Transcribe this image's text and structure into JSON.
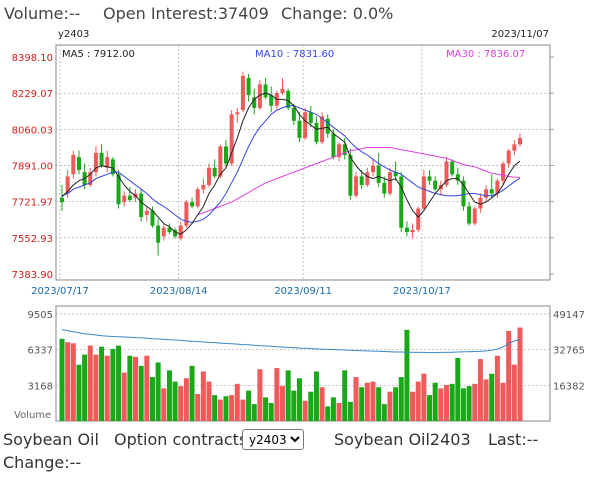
{
  "header": {
    "volume_label": "Volume:--",
    "open_interest_label": "Open Interest:37409",
    "change_label": "Change: 0.0%"
  },
  "chart_meta": {
    "contract": "y2403",
    "date": "2023/11/07",
    "ma5_label": "MA5 : 7912.00",
    "ma10_label": "MA10 : 7831.60",
    "ma30_label": "MA30 : 7836.07",
    "volume_label": "Volume"
  },
  "colors": {
    "up": "#f05a5a",
    "down": "#18a818",
    "ma5": "#222222",
    "ma10": "#3446e0",
    "ma30": "#e040e0",
    "vol_ma": "#3a87c8",
    "grid": "#aaaaaa",
    "axis_text": "#d02020",
    "date_text": "#1a6aa8"
  },
  "chart_data": [
    {
      "type": "candlestick",
      "y_ticks": [
        "8398.10",
        "8229.07",
        "8060.03",
        "7891.00",
        "7721.97",
        "7552.93",
        "7383.90"
      ],
      "ylim": [
        7383.9,
        8398.1
      ],
      "x_ticks": [
        "2023/07/17",
        "2023/08/14",
        "2023/09/11",
        "2023/10/17"
      ],
      "candles": [
        {
          "o": 7740,
          "h": 7800,
          "l": 7680,
          "c": 7720
        },
        {
          "o": 7760,
          "h": 7870,
          "l": 7740,
          "c": 7840
        },
        {
          "o": 7850,
          "h": 7960,
          "l": 7830,
          "c": 7940
        },
        {
          "o": 7930,
          "h": 7960,
          "l": 7850,
          "c": 7870
        },
        {
          "o": 7860,
          "h": 7900,
          "l": 7780,
          "c": 7800
        },
        {
          "o": 7800,
          "h": 7880,
          "l": 7790,
          "c": 7860
        },
        {
          "o": 7860,
          "h": 7980,
          "l": 7840,
          "c": 7950
        },
        {
          "o": 7950,
          "h": 7990,
          "l": 7880,
          "c": 7890
        },
        {
          "o": 7880,
          "h": 7960,
          "l": 7860,
          "c": 7930
        },
        {
          "o": 7920,
          "h": 7930,
          "l": 7840,
          "c": 7850
        },
        {
          "o": 7850,
          "h": 7870,
          "l": 7690,
          "c": 7710
        },
        {
          "o": 7720,
          "h": 7770,
          "l": 7700,
          "c": 7750
        },
        {
          "o": 7750,
          "h": 7790,
          "l": 7720,
          "c": 7730
        },
        {
          "o": 7740,
          "h": 7780,
          "l": 7720,
          "c": 7760
        },
        {
          "o": 7760,
          "h": 7780,
          "l": 7630,
          "c": 7650
        },
        {
          "o": 7660,
          "h": 7700,
          "l": 7630,
          "c": 7680
        },
        {
          "o": 7680,
          "h": 7700,
          "l": 7600,
          "c": 7610
        },
        {
          "o": 7610,
          "h": 7640,
          "l": 7470,
          "c": 7530
        },
        {
          "o": 7560,
          "h": 7620,
          "l": 7540,
          "c": 7600
        },
        {
          "o": 7600,
          "h": 7620,
          "l": 7570,
          "c": 7580
        },
        {
          "o": 7590,
          "h": 7600,
          "l": 7550,
          "c": 7560
        },
        {
          "o": 7550,
          "h": 7630,
          "l": 7540,
          "c": 7610
        },
        {
          "o": 7610,
          "h": 7730,
          "l": 7600,
          "c": 7720
        },
        {
          "o": 7720,
          "h": 7740,
          "l": 7690,
          "c": 7700
        },
        {
          "o": 7700,
          "h": 7790,
          "l": 7690,
          "c": 7780
        },
        {
          "o": 7780,
          "h": 7830,
          "l": 7760,
          "c": 7800
        },
        {
          "o": 7800,
          "h": 7900,
          "l": 7790,
          "c": 7880
        },
        {
          "o": 7880,
          "h": 7920,
          "l": 7830,
          "c": 7840
        },
        {
          "o": 7840,
          "h": 7990,
          "l": 7830,
          "c": 7980
        },
        {
          "o": 7980,
          "h": 8010,
          "l": 7880,
          "c": 7900
        },
        {
          "o": 7900,
          "h": 8150,
          "l": 7890,
          "c": 8130
        },
        {
          "o": 8130,
          "h": 8160,
          "l": 8090,
          "c": 8140
        },
        {
          "o": 8150,
          "h": 8330,
          "l": 8140,
          "c": 8310
        },
        {
          "o": 8300,
          "h": 8320,
          "l": 8190,
          "c": 8220
        },
        {
          "o": 8210,
          "h": 8250,
          "l": 8130,
          "c": 8160
        },
        {
          "o": 8160,
          "h": 8290,
          "l": 8150,
          "c": 8270
        },
        {
          "o": 8270,
          "h": 8300,
          "l": 8200,
          "c": 8210
        },
        {
          "o": 8220,
          "h": 8260,
          "l": 8140,
          "c": 8170
        },
        {
          "o": 8170,
          "h": 8240,
          "l": 8150,
          "c": 8230
        },
        {
          "o": 8230,
          "h": 8300,
          "l": 8220,
          "c": 8250
        },
        {
          "o": 8240,
          "h": 8250,
          "l": 8150,
          "c": 8160
        },
        {
          "o": 8160,
          "h": 8180,
          "l": 8080,
          "c": 8100
        },
        {
          "o": 8100,
          "h": 8140,
          "l": 8000,
          "c": 8020
        },
        {
          "o": 8020,
          "h": 8160,
          "l": 8010,
          "c": 8140
        },
        {
          "o": 8140,
          "h": 8170,
          "l": 8070,
          "c": 8090
        },
        {
          "o": 8090,
          "h": 8120,
          "l": 7990,
          "c": 8000
        },
        {
          "o": 8000,
          "h": 8140,
          "l": 7990,
          "c": 8120
        },
        {
          "o": 8110,
          "h": 8130,
          "l": 8020,
          "c": 8040
        },
        {
          "o": 8040,
          "h": 8060,
          "l": 7920,
          "c": 7930
        },
        {
          "o": 7930,
          "h": 8000,
          "l": 7910,
          "c": 7990
        },
        {
          "o": 7990,
          "h": 8020,
          "l": 7920,
          "c": 7940
        },
        {
          "o": 7940,
          "h": 7970,
          "l": 7730,
          "c": 7750
        },
        {
          "o": 7750,
          "h": 7860,
          "l": 7740,
          "c": 7840
        },
        {
          "o": 7840,
          "h": 7870,
          "l": 7780,
          "c": 7800
        },
        {
          "o": 7800,
          "h": 7880,
          "l": 7790,
          "c": 7860
        },
        {
          "o": 7860,
          "h": 7920,
          "l": 7840,
          "c": 7890
        },
        {
          "o": 7890,
          "h": 7950,
          "l": 7790,
          "c": 7810
        },
        {
          "o": 7810,
          "h": 7840,
          "l": 7740,
          "c": 7760
        },
        {
          "o": 7760,
          "h": 7880,
          "l": 7750,
          "c": 7860
        },
        {
          "o": 7860,
          "h": 7910,
          "l": 7820,
          "c": 7840
        },
        {
          "o": 7840,
          "h": 7860,
          "l": 7580,
          "c": 7600
        },
        {
          "o": 7600,
          "h": 7630,
          "l": 7560,
          "c": 7580
        },
        {
          "o": 7580,
          "h": 7620,
          "l": 7550,
          "c": 7590
        },
        {
          "o": 7590,
          "h": 7700,
          "l": 7580,
          "c": 7690
        },
        {
          "o": 7690,
          "h": 7870,
          "l": 7680,
          "c": 7840
        },
        {
          "o": 7840,
          "h": 7870,
          "l": 7800,
          "c": 7820
        },
        {
          "o": 7820,
          "h": 7840,
          "l": 7770,
          "c": 7780
        },
        {
          "o": 7780,
          "h": 7820,
          "l": 7750,
          "c": 7800
        },
        {
          "o": 7800,
          "h": 7930,
          "l": 7790,
          "c": 7910
        },
        {
          "o": 7910,
          "h": 7920,
          "l": 7840,
          "c": 7850
        },
        {
          "o": 7850,
          "h": 7880,
          "l": 7800,
          "c": 7820
        },
        {
          "o": 7820,
          "h": 7840,
          "l": 7680,
          "c": 7700
        },
        {
          "o": 7700,
          "h": 7720,
          "l": 7610,
          "c": 7620
        },
        {
          "o": 7620,
          "h": 7700,
          "l": 7610,
          "c": 7690
        },
        {
          "o": 7690,
          "h": 7760,
          "l": 7670,
          "c": 7740
        },
        {
          "o": 7740,
          "h": 7800,
          "l": 7720,
          "c": 7780
        },
        {
          "o": 7780,
          "h": 7850,
          "l": 7740,
          "c": 7760
        },
        {
          "o": 7760,
          "h": 7830,
          "l": 7740,
          "c": 7820
        },
        {
          "o": 7820,
          "h": 7910,
          "l": 7800,
          "c": 7900
        },
        {
          "o": 7900,
          "h": 7970,
          "l": 7880,
          "c": 7960
        },
        {
          "o": 7960,
          "h": 8010,
          "l": 7940,
          "c": 7990
        },
        {
          "o": 7990,
          "h": 8040,
          "l": 7980,
          "c": 8020
        }
      ],
      "ma5": [
        7745,
        7770,
        7800,
        7820,
        7830,
        7850,
        7880,
        7890,
        7885,
        7880,
        7840,
        7800,
        7770,
        7750,
        7720,
        7700,
        7680,
        7650,
        7620,
        7605,
        7580,
        7570,
        7590,
        7620,
        7660,
        7700,
        7760,
        7800,
        7850,
        7880,
        7950,
        8020,
        8100,
        8160,
        8200,
        8220,
        8230,
        8220,
        8200,
        8200,
        8195,
        8170,
        8130,
        8100,
        8080,
        8060,
        8065,
        8070,
        8040,
        8020,
        8000,
        7930,
        7890,
        7860,
        7840,
        7830,
        7840,
        7830,
        7820,
        7830,
        7790,
        7730,
        7680,
        7650,
        7680,
        7720,
        7760,
        7790,
        7820,
        7830,
        7830,
        7800,
        7760,
        7720,
        7710,
        7720,
        7740,
        7760,
        7800,
        7850,
        7890,
        7912
      ],
      "ma10": [
        7750,
        7760,
        7780,
        7790,
        7800,
        7810,
        7830,
        7840,
        7850,
        7860,
        7860,
        7840,
        7820,
        7800,
        7780,
        7760,
        7735,
        7715,
        7700,
        7680,
        7660,
        7640,
        7630,
        7625,
        7630,
        7640,
        7660,
        7690,
        7720,
        7760,
        7810,
        7860,
        7920,
        7980,
        8030,
        8070,
        8100,
        8130,
        8150,
        8160,
        8170,
        8170,
        8160,
        8150,
        8140,
        8130,
        8110,
        8090,
        8070,
        8050,
        8030,
        8000,
        7975,
        7955,
        7940,
        7920,
        7900,
        7885,
        7870,
        7860,
        7850,
        7830,
        7810,
        7790,
        7780,
        7770,
        7760,
        7755,
        7750,
        7750,
        7750,
        7755,
        7760,
        7760,
        7755,
        7750,
        7750,
        7760,
        7775,
        7795,
        7815,
        7832
      ],
      "ma30_start": 24,
      "ma30": [
        7660,
        7670,
        7680,
        7690,
        7700,
        7710,
        7720,
        7735,
        7750,
        7765,
        7780,
        7795,
        7810,
        7820,
        7830,
        7840,
        7850,
        7860,
        7870,
        7880,
        7890,
        7900,
        7910,
        7920,
        7930,
        7940,
        7950,
        7960,
        7965,
        7970,
        7975,
        7975,
        7975,
        7975,
        7975,
        7970,
        7965,
        7960,
        7955,
        7950,
        7945,
        7940,
        7935,
        7930,
        7925,
        7915,
        7905,
        7895,
        7890,
        7885,
        7875,
        7865,
        7855,
        7850,
        7845,
        7840,
        7836,
        7836
      ]
    },
    {
      "type": "bar",
      "title": "Volume",
      "y_ticks_left": [
        "9505",
        "6337",
        "3168"
      ],
      "y_ticks_right": [
        "49147",
        "32765",
        "16382"
      ],
      "ylim": [
        0,
        9505
      ],
      "right_ylim": [
        0,
        49147
      ],
      "volumes": [
        7300,
        7000,
        6900,
        5000,
        5900,
        6700,
        5900,
        6600,
        5800,
        6400,
        6700,
        4300,
        5800,
        5700,
        4900,
        5800,
        3900,
        5200,
        2900,
        4500,
        3500,
        3100,
        3800,
        4900,
        2400,
        4400,
        3500,
        2300,
        1900,
        2200,
        2300,
        3300,
        1900,
        2700,
        1500,
        4600,
        2100,
        1600,
        4700,
        3100,
        4500,
        2700,
        3800,
        1800,
        2600,
        4400,
        3000,
        1300,
        2100,
        1600,
        4500,
        1700,
        3900,
        3000,
        3400,
        3500,
        3000,
        1500,
        2600,
        3000,
        3900,
        8100,
        2600,
        3500,
        4200,
        2300,
        3400,
        2900,
        3200,
        3300,
        5600,
        2900,
        3100,
        3300,
        5500,
        3700,
        4200,
        5800,
        3400,
        8000,
        5000,
        8300
      ],
      "open_interest": [
        42000,
        41500,
        41000,
        40500,
        40000,
        39800,
        39500,
        39200,
        39000,
        38800,
        38700,
        38600,
        38500,
        38300,
        38200,
        38000,
        37800,
        37700,
        37500,
        37300,
        37200,
        37000,
        36800,
        36600,
        36500,
        36300,
        36100,
        36000,
        35800,
        35600,
        35500,
        35300,
        35100,
        35000,
        34800,
        34600,
        34500,
        34300,
        34100,
        34000,
        33800,
        33700,
        33500,
        33400,
        33300,
        33100,
        33000,
        32900,
        32800,
        32700,
        32600,
        32500,
        32400,
        32300,
        32200,
        32100,
        32000,
        31900,
        31800,
        31700,
        31700,
        31600,
        31600,
        31500,
        31500,
        31400,
        31400,
        31500,
        31500,
        31600,
        31700,
        31800,
        31800,
        31900,
        32000,
        32200,
        32500,
        33000,
        34000,
        35500,
        36800,
        37409
      ]
    }
  ],
  "footer": {
    "product": "Soybean Oil",
    "option_label": "Option contracts",
    "selected_contract": "y2403",
    "contract_name": "Soybean Oil2403",
    "last_label": "Last:--",
    "change_label": "Change:--"
  }
}
